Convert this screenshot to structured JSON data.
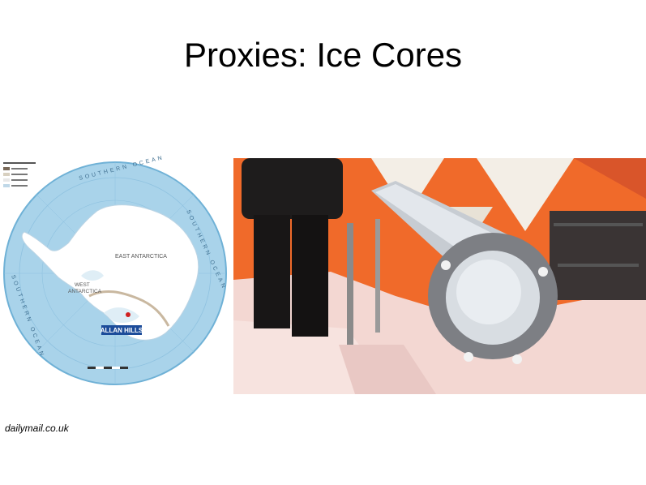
{
  "slide": {
    "title": "Proxies: Ice Cores",
    "credit": "dailymail.co.uk"
  },
  "map": {
    "region_label": "EAST ANTARCTICA",
    "west_label_1": "WEST",
    "west_label_2": "ANTARCTICA",
    "site_label": "ALLAN HILLS",
    "ocean_top": "SOUTHERN OCEAN",
    "ocean_right": "SOUTHERN OCEAN",
    "ocean_left": "SOUTHERN OCEAN",
    "colors": {
      "ocean": "#a9d3ea",
      "ocean_edge": "#6fb1d6",
      "ice": "#ffffff",
      "site_box": "#1c4c9a"
    }
  },
  "photo": {
    "colors": {
      "tent_orange": "#f06a2a",
      "tent_white": "#f3eee6",
      "snow": "#f3d7d2",
      "core": "#cfd4da"
    }
  }
}
